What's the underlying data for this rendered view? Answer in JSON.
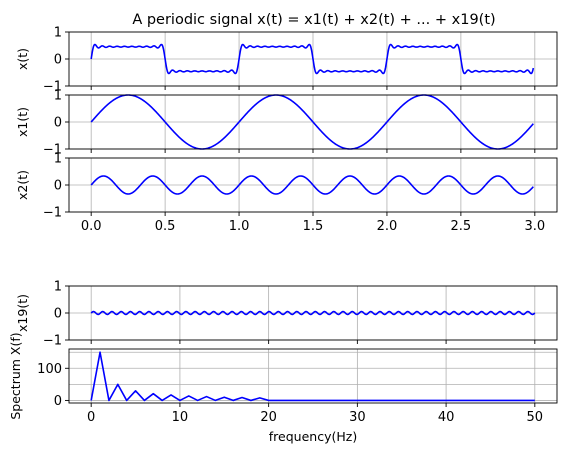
{
  "chart_data": [
    {
      "id": "xt",
      "type": "line",
      "title": "A periodic signal x(t) = x1(t) + x2(t) + ... + x19(t)",
      "ylabel": "x(t)",
      "xlabel": "",
      "xlim": [
        -0.15,
        3.15
      ],
      "ylim": [
        -1,
        1
      ],
      "yticks": [
        "1",
        "0",
        "−1"
      ],
      "show_xticklabels": false,
      "grid": true,
      "signal": {
        "kind": "square_fourier",
        "f0": 1,
        "harmonics": [
          1,
          3,
          5,
          7,
          9,
          11,
          13,
          15,
          17,
          19
        ],
        "amplitude_scale": 0.6366,
        "t_range": [
          0,
          2.99
        ]
      },
      "color": "#0000ff"
    },
    {
      "id": "x1",
      "type": "line",
      "ylabel": "x1(t)",
      "xlabel": "",
      "xlim": [
        -0.15,
        3.15
      ],
      "ylim": [
        -1,
        1
      ],
      "yticks": [
        "1",
        "0",
        "−1"
      ],
      "show_xticklabels": false,
      "grid": true,
      "signal": {
        "kind": "sine",
        "frequency": 1,
        "amplitude": 1,
        "t_range": [
          0,
          2.99
        ]
      },
      "color": "#0000ff"
    },
    {
      "id": "x2",
      "type": "line",
      "ylabel": "x2(t)",
      "xlabel": "",
      "xlim": [
        -0.15,
        3.15
      ],
      "ylim": [
        -1,
        1
      ],
      "yticks": [
        "1",
        "0",
        "−1"
      ],
      "xticks": [
        "0.0",
        "0.5",
        "1.0",
        "1.5",
        "2.0",
        "2.5",
        "3.0"
      ],
      "show_xticklabels": true,
      "grid": true,
      "signal": {
        "kind": "sine",
        "frequency": 3,
        "amplitude": 0.3333,
        "t_range": [
          0,
          2.99
        ]
      },
      "color": "#0000ff"
    },
    {
      "id": "x19",
      "type": "line",
      "ylabel": "x19(t)",
      "xlabel": "",
      "xlim": [
        -2.5,
        52.5
      ],
      "ylim": [
        -1,
        1
      ],
      "yticks": [
        "1",
        "0",
        "−1"
      ],
      "show_xticklabels": false,
      "grid": true,
      "signal": {
        "kind": "sine",
        "frequency": 0.96,
        "amplitude": 0.0526,
        "t_range": [
          0,
          50
        ]
      },
      "color": "#0000ff"
    },
    {
      "id": "spectrum",
      "type": "line",
      "ylabel": "Spectrum X(f)",
      "xlabel": "frequency(Hz)",
      "xlim": [
        -2.5,
        52.5
      ],
      "ylim": [
        -8,
        160
      ],
      "yticks": [
        "100",
        "0"
      ],
      "xticks": [
        "0",
        "10",
        "20",
        "30",
        "40",
        "50"
      ],
      "show_xticklabels": true,
      "grid": true,
      "peaks": [
        {
          "f": 1,
          "value": 150
        },
        {
          "f": 3,
          "value": 50
        },
        {
          "f": 5,
          "value": 30
        },
        {
          "f": 7,
          "value": 21
        },
        {
          "f": 9,
          "value": 17
        },
        {
          "f": 11,
          "value": 14
        },
        {
          "f": 13,
          "value": 12
        },
        {
          "f": 15,
          "value": 10
        },
        {
          "f": 17,
          "value": 9
        },
        {
          "f": 19,
          "value": 8
        }
      ],
      "f_range": [
        0,
        50
      ],
      "color": "#0000ff"
    }
  ]
}
